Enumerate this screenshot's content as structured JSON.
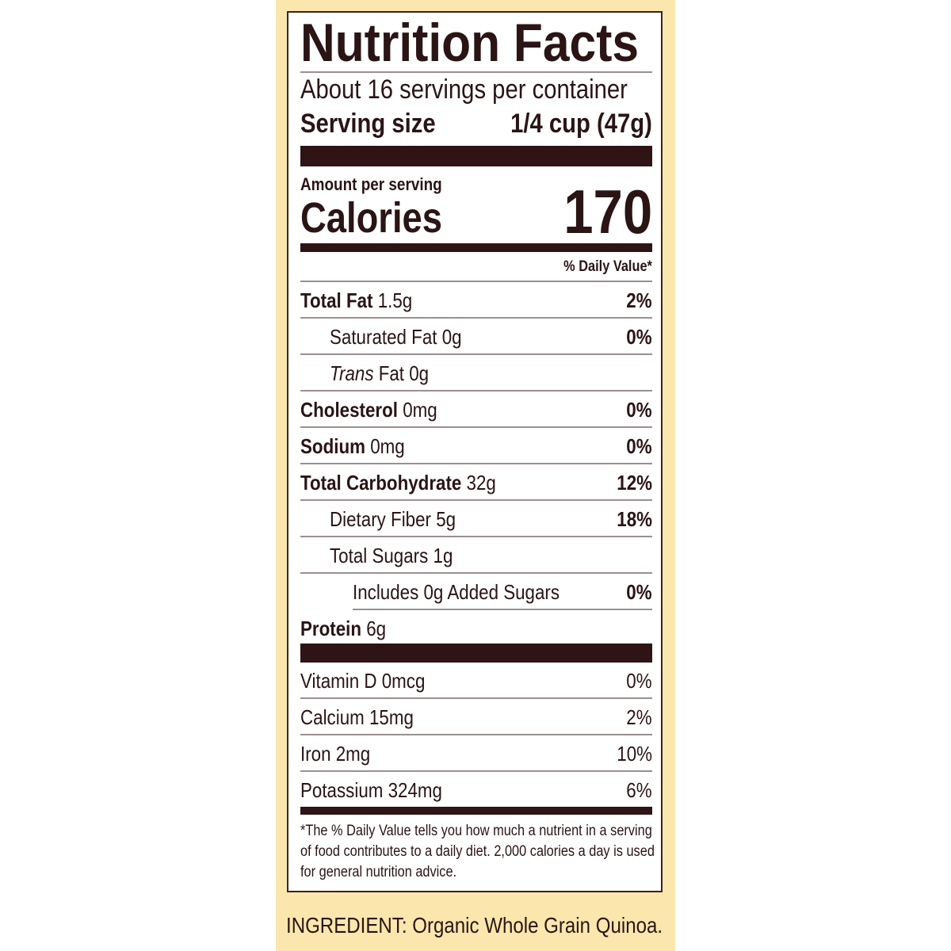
{
  "label": {
    "title": "Nutrition Facts",
    "servings_per_container": "About 16 servings per container",
    "serving_size_label": "Serving size",
    "serving_size_value": "1/4 cup (47g)",
    "amount_per_serving": "Amount per serving",
    "calories_label": "Calories",
    "calories_value": "170",
    "daily_value_header": "% Daily Value*",
    "nutrients": [
      {
        "name": "Total Fat",
        "amount": " 1.5g",
        "dv": "2%",
        "indent": 0
      },
      {
        "name": "Saturated Fat 0g",
        "amount": "",
        "dv": "0%",
        "indent": 1
      },
      {
        "name": "Trans",
        "amount": " Fat 0g",
        "dv": "",
        "indent": 1
      },
      {
        "name": "Cholesterol",
        "amount": " 0mg",
        "dv": "0%",
        "indent": 0
      },
      {
        "name": "Sodium",
        "amount": " 0mg",
        "dv": "0%",
        "indent": 0
      },
      {
        "name": "Total Carbohydrate",
        "amount": " 32g",
        "dv": "12%",
        "indent": 0
      },
      {
        "name": "Dietary Fiber 5g",
        "amount": "",
        "dv": "18%",
        "indent": 1
      },
      {
        "name": "Total Sugars 1g",
        "amount": "",
        "dv": "",
        "indent": 1
      },
      {
        "name": "Includes 0g Added Sugars",
        "amount": "",
        "dv": "0%",
        "indent": 2
      },
      {
        "name": "Protein",
        "amount": " 6g",
        "dv": "",
        "indent": 0
      }
    ],
    "vitamins": [
      {
        "name": "Vitamin D 0mcg",
        "dv": "0%"
      },
      {
        "name": "Calcium 15mg",
        "dv": "2%"
      },
      {
        "name": "Iron 2mg",
        "dv": "10%"
      },
      {
        "name": "Potassium 324mg",
        "dv": "6%"
      }
    ],
    "footnote": "*The % Daily Value tells you how much a nutrient in a serving of food contributes to a daily diet. 2,000 calories a day is used for general nutrition advice."
  },
  "ingredients": "INGREDIENT: Organic Whole Grain Quinoa.",
  "colors": {
    "ink": "#2a1414",
    "panel": "#fbe7ad",
    "bars": "#2e1414"
  }
}
